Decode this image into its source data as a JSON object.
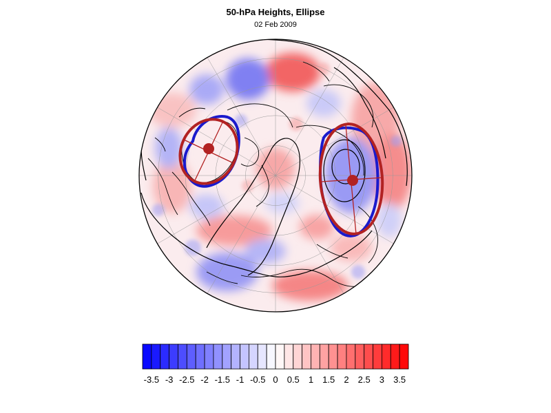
{
  "title": "50-hPa Heights, Ellipse",
  "subtitle": "02 Feb 2009",
  "colors": {
    "low": "#0000ff",
    "mid": "#ffffff",
    "high": "#ff0000",
    "ellipse_outline": "#b22222",
    "vortex_contour": "#1a1acc",
    "centroid": "#b22222",
    "coastline": "#000000",
    "height_contour": "#000000"
  },
  "colorbar": {
    "min": -3.75,
    "max": 3.75,
    "step": 0.25,
    "tick_labels": [
      "-3.5",
      "-3",
      "-2.5",
      "-2",
      "-1.5",
      "-1",
      "-0.5",
      "0",
      "0.5",
      "1",
      "1.5",
      "2",
      "2.5",
      "3",
      "3.5"
    ],
    "tick_values": [
      -3.5,
      -3,
      -2.5,
      -2,
      -1.5,
      -1,
      -0.5,
      0,
      0.5,
      1,
      1.5,
      2,
      2.5,
      3,
      3.5
    ]
  },
  "map": {
    "projection": "north-polar orthographic",
    "features": [
      "shaded anomaly field",
      "coastlines",
      "lat-lon graticule",
      "50-hPa height contours",
      "two vortex ellipses with centroids"
    ]
  }
}
